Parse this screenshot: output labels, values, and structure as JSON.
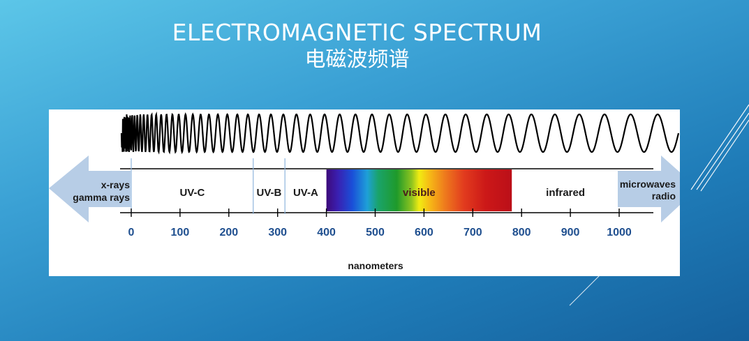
{
  "title": {
    "en": "ELECTROMAGNETIC SPECTRUM",
    "zh": "电磁波频谱"
  },
  "diagram": {
    "left_arrow_labels": [
      "x-rays",
      "gamma rays"
    ],
    "right_arrow_labels": [
      "microwaves",
      "radio"
    ],
    "regions": [
      {
        "label": "UV-C",
        "start_nm": 0,
        "end_nm": 250
      },
      {
        "label": "UV-B",
        "start_nm": 250,
        "end_nm": 315
      },
      {
        "label": "UV-A",
        "start_nm": 315,
        "end_nm": 400
      },
      {
        "label": "visible",
        "start_nm": 400,
        "end_nm": 780
      },
      {
        "label": "infrared",
        "start_nm": 780,
        "end_nm": 1000
      }
    ],
    "ticks": [
      0,
      100,
      200,
      300,
      400,
      500,
      600,
      700,
      800,
      900,
      1000
    ],
    "axis_label": "nanometers",
    "colors": {
      "label_color": "#1a1a1a",
      "tick_label_color": "#1f4f8f",
      "arrow_color": "#b7cde6",
      "line_color": "#000000",
      "divider_color": "#8fb5dd"
    }
  }
}
